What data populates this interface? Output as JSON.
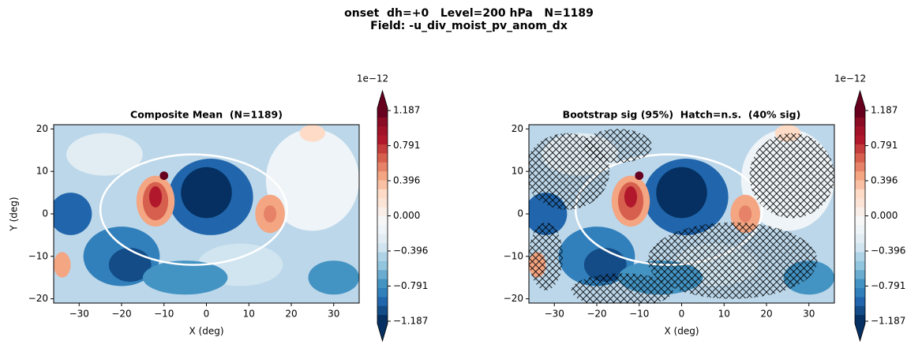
{
  "suptitle": [
    "onset  dh=+0   Level=200 hPa   N=1189",
    "Field: -u_div_moist_pv_anom_dx"
  ],
  "chart_data": [
    {
      "type": "contour",
      "title": "Composite Mean  (N=1189)",
      "xlabel": "X (deg)",
      "ylabel": "Y (deg)",
      "xlim": [
        -36,
        36
      ],
      "ylim": [
        -21,
        21
      ],
      "xticks": [
        {
          "value": -30,
          "label": "−30"
        },
        {
          "value": -20,
          "label": "−20"
        },
        {
          "value": -10,
          "label": "−10"
        },
        0,
        10,
        20,
        30
      ],
      "yticks": [
        {
          "value": -20,
          "label": "−20"
        },
        {
          "value": -10,
          "label": "−10"
        },
        0,
        10,
        20
      ],
      "hatch": false,
      "colorbar": {
        "offset_label": "1e−12",
        "clim": [
          -1.214,
          1.214
        ],
        "ticks": [
          {
            "value": -1.187,
            "label": "−1.187"
          },
          {
            "value": -0.791,
            "label": "−0.791"
          },
          {
            "value": -0.396,
            "label": "−0.396"
          },
          {
            "value": 0,
            "label": "0.000"
          },
          0.396,
          0.791,
          1.187
        ],
        "cmap": [
          "#053061",
          "#134c87",
          "#2166ac",
          "#3180bc",
          "#4393c3",
          "#6aabd0",
          "#92c5de",
          "#aed3e6",
          "#d1e5f0",
          "#e2edf3",
          "#eef4f7",
          "#f7f7f7",
          "#f9eee8",
          "#fbe3d6",
          "#fddbc7",
          "#f9c0a3",
          "#f4a582",
          "#e58267",
          "#d6604d",
          "#c43c3c",
          "#b2182b",
          "#a11228",
          "#8a0b24",
          "#67001f"
        ]
      }
    },
    {
      "type": "contour",
      "title": "Bootstrap sig (95%)  Hatch=n.s.  (40% sig)",
      "xlabel": "X (deg)",
      "xlim": [
        -36,
        36
      ],
      "ylim": [
        -21,
        21
      ],
      "xticks": [
        {
          "value": -30,
          "label": "−30"
        },
        {
          "value": -20,
          "label": "−20"
        },
        {
          "value": -10,
          "label": "−10"
        },
        0,
        10,
        20,
        30
      ],
      "yticks": [
        {
          "value": -20,
          "label": "−20"
        },
        {
          "value": -10,
          "label": "−10"
        },
        0,
        10,
        20
      ],
      "hatch": true,
      "colorbar": {
        "offset_label": "1e−12",
        "clim": [
          -1.214,
          1.214
        ],
        "ticks": [
          {
            "value": -1.187,
            "label": "−1.187"
          },
          {
            "value": -0.791,
            "label": "−0.791"
          },
          {
            "value": -0.396,
            "label": "−0.396"
          },
          {
            "value": 0,
            "label": "0.000"
          },
          0.396,
          0.791,
          1.187
        ],
        "cmap": [
          "#053061",
          "#134c87",
          "#2166ac",
          "#3180bc",
          "#4393c3",
          "#6aabd0",
          "#92c5de",
          "#aed3e6",
          "#d1e5f0",
          "#e2edf3",
          "#eef4f7",
          "#f7f7f7",
          "#f9eee8",
          "#fbe3d6",
          "#fddbc7",
          "#f9c0a3",
          "#f4a582",
          "#e58267",
          "#d6604d",
          "#c43c3c",
          "#b2182b",
          "#a11228",
          "#8a0b24",
          "#67001f"
        ]
      }
    }
  ]
}
